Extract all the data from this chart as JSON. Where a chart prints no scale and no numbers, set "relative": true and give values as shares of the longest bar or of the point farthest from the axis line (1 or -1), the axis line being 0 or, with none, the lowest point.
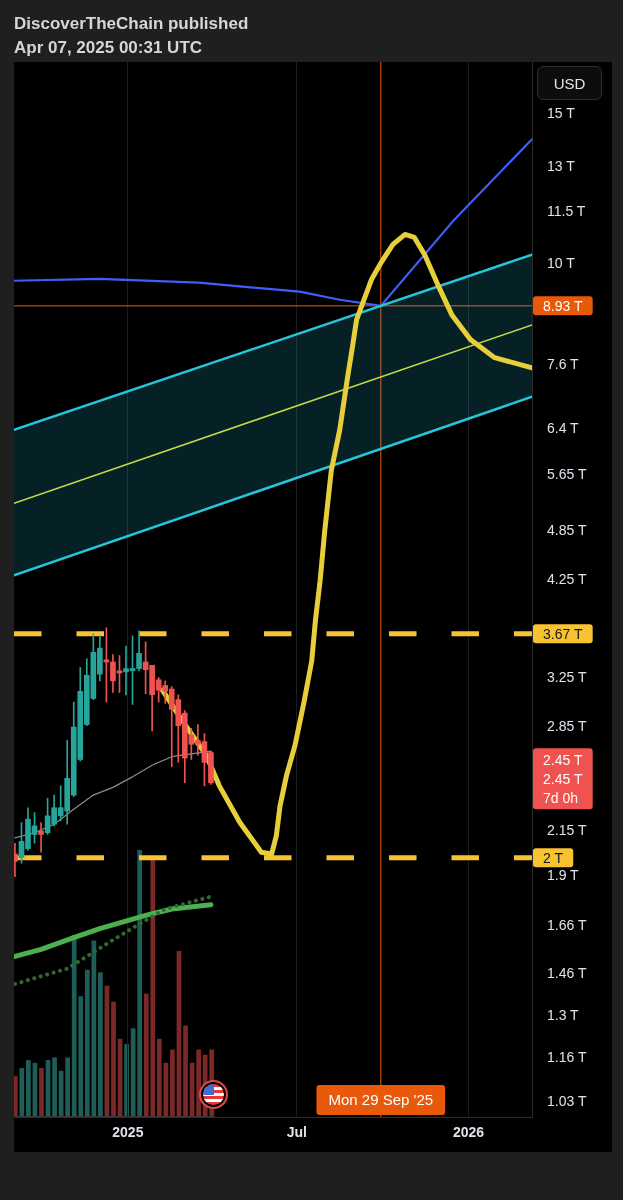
{
  "chart_data": [
    {
      "type": "candlestick",
      "title": "DiscoverTheChain published",
      "subtitle": "Apr 07, 2025 00:31 UTC",
      "ylabel": "USD",
      "x": [
        "2024-09-02",
        "2024-09-09",
        "2024-09-16",
        "2024-09-23",
        "2024-09-30",
        "2024-10-07",
        "2024-10-14",
        "2024-10-21",
        "2024-10-28",
        "2024-11-04",
        "2024-11-11",
        "2024-11-18",
        "2024-11-25",
        "2024-12-02",
        "2024-12-09",
        "2024-12-16",
        "2024-12-23",
        "2024-12-30",
        "2025-01-06",
        "2025-01-13",
        "2025-01-20",
        "2025-01-27",
        "2025-02-03",
        "2025-02-10",
        "2025-02-17",
        "2025-02-24",
        "2025-03-03",
        "2025-03-10",
        "2025-03-17",
        "2025-03-24",
        "2025-03-31"
      ],
      "ohlc": [
        [
          2.02,
          2.08,
          1.9,
          1.98
        ],
        [
          2.0,
          2.2,
          1.97,
          2.09
        ],
        [
          2.05,
          2.29,
          2.04,
          2.22
        ],
        [
          2.13,
          2.26,
          2.08,
          2.18
        ],
        [
          2.15,
          2.2,
          2.03,
          2.13
        ],
        [
          2.14,
          2.35,
          2.13,
          2.24
        ],
        [
          2.19,
          2.37,
          2.18,
          2.29
        ],
        [
          2.24,
          2.43,
          2.21,
          2.29
        ],
        [
          2.27,
          2.75,
          2.19,
          2.48
        ],
        [
          2.37,
          3.05,
          2.36,
          2.85
        ],
        [
          2.61,
          3.35,
          2.6,
          3.14
        ],
        [
          2.87,
          3.43,
          2.86,
          3.28
        ],
        [
          3.08,
          3.67,
          3.07,
          3.49
        ],
        [
          3.29,
          3.65,
          3.23,
          3.53
        ],
        [
          3.42,
          3.73,
          3.05,
          3.4
        ],
        [
          3.4,
          3.47,
          3.13,
          3.23
        ],
        [
          3.32,
          3.46,
          3.13,
          3.3
        ],
        [
          3.31,
          3.55,
          3.11,
          3.34
        ],
        [
          3.32,
          3.65,
          3.03,
          3.34
        ],
        [
          3.34,
          3.7,
          3.32,
          3.48
        ],
        [
          3.4,
          3.59,
          3.12,
          3.33
        ],
        [
          3.37,
          3.37,
          2.82,
          3.11
        ],
        [
          3.24,
          3.26,
          3.05,
          3.15
        ],
        [
          3.19,
          3.23,
          3.04,
          3.14
        ],
        [
          3.16,
          3.18,
          2.56,
          2.99
        ],
        [
          3.07,
          3.11,
          2.59,
          2.86
        ],
        [
          2.96,
          2.98,
          2.45,
          2.62
        ],
        [
          2.79,
          2.84,
          2.61,
          2.72
        ],
        [
          2.75,
          2.87,
          2.64,
          2.72
        ],
        [
          2.74,
          2.8,
          2.43,
          2.59
        ],
        [
          2.66,
          2.67,
          2.44,
          2.45
        ]
      ],
      "colors": [
        "#ef5350",
        "#26a69a",
        "#26a69a",
        "#26a69a",
        "#ef5350",
        "#26a69a",
        "#26a69a",
        "#26a69a",
        "#26a69a",
        "#26a69a",
        "#26a69a",
        "#26a69a",
        "#26a69a",
        "#26a69a",
        "#ef5350",
        "#ef5350",
        "#ef5350",
        "#26a69a",
        "#26a69a",
        "#26a69a",
        "#ef5350",
        "#ef5350",
        "#ef5350",
        "#ef5350",
        "#ef5350",
        "#ef5350",
        "#ef5350",
        "#ef5350",
        "#ef5350",
        "#ef5350",
        "#ef5350"
      ],
      "series": [
        {
          "type": "line",
          "color": "#8c8c8c",
          "x": [
            "2024-09-02",
            "2024-09-23",
            "2024-10-14",
            "2024-11-04",
            "2024-11-25",
            "2024-12-16",
            "2025-01-06",
            "2025-01-27",
            "2025-02-17",
            "2025-03-10",
            "2025-03-31"
          ],
          "values": [
            2.11,
            2.14,
            2.19,
            2.28,
            2.37,
            2.42,
            2.49,
            2.57,
            2.63,
            2.65,
            2.67
          ]
        },
        {
          "type": "line",
          "color": "#4caf50",
          "x": [
            "2024-09-02",
            "2024-09-30",
            "2024-11-04",
            "2024-12-02",
            "2025-01-20",
            "2025-02-17",
            "2025-03-31"
          ],
          "values": [
            1.53,
            1.56,
            1.61,
            1.65,
            1.71,
            1.74,
            1.76
          ]
        },
        {
          "type": "line",
          "color": "#2e6b30",
          "line_style": "dotted",
          "x": [
            "2024-09-02",
            "2024-09-30",
            "2024-10-28",
            "2024-11-18",
            "2024-12-16",
            "2025-01-13",
            "2025-02-10",
            "2025-03-31"
          ],
          "values": [
            1.42,
            1.45,
            1.48,
            1.53,
            1.6,
            1.67,
            1.74,
            1.8
          ]
        },
        {
          "type": "line",
          "color": "#3f5efb",
          "x": [
            "2024-09-01",
            "2024-12-01",
            "2025-03-18",
            "2025-07-04",
            "2025-08-16",
            "2025-09-29",
            "2025-12-17",
            "2026-03-10"
          ],
          "values": [
            9.56,
            9.61,
            9.51,
            9.28,
            9.08,
            8.93,
            11.29,
            14.03
          ]
        },
        {
          "type": "line",
          "color": "#26c6da",
          "x": [
            "2024-09-01",
            "2026-03-10"
          ],
          "values": [
            6.38,
            10.26
          ]
        },
        {
          "type": "line",
          "color": "#26c6da",
          "x": [
            "2024-09-01",
            "2026-03-10"
          ],
          "values": [
            4.3,
            6.98
          ]
        },
        {
          "type": "line",
          "color": "#c9d94a",
          "x": [
            "2024-09-01",
            "2026-03-10"
          ],
          "values": [
            5.23,
            8.48
          ],
          "lower": [
            4.3,
            6.98
          ],
          "upper": [
            6.38,
            10.26
          ]
        },
        {
          "type": "line",
          "color": "#e6cf3a",
          "x": [
            "2025-02-07",
            "2025-03-04",
            "2025-03-26",
            "2025-04-09",
            "2025-05-01",
            "2025-05-24",
            "2025-06-04",
            "2025-06-09",
            "2025-06-13",
            "2025-06-20",
            "2025-06-29",
            "2025-07-09",
            "2025-07-17",
            "2025-07-21",
            "2025-07-26",
            "2025-07-31",
            "2025-08-07",
            "2025-08-16",
            "2025-08-24",
            "2025-08-30",
            "2025-09-03",
            "2025-09-11",
            "2025-09-19",
            "2025-09-30",
            "2025-10-12",
            "2025-10-25",
            "2025-11-04",
            "2025-11-15",
            "2025-11-29",
            "2025-12-14",
            "2026-01-03",
            "2026-01-29",
            "2026-03-10"
          ],
          "values": [
            3.15,
            2.86,
            2.64,
            2.43,
            2.2,
            2.03,
            2.02,
            2.12,
            2.3,
            2.5,
            2.71,
            3.06,
            3.41,
            3.81,
            4.24,
            4.86,
            5.72,
            6.38,
            7.31,
            8.04,
            8.6,
            9.08,
            9.59,
            10.07,
            10.55,
            10.84,
            10.75,
            10.26,
            9.46,
            8.72,
            8.15,
            7.76,
            7.55
          ]
        }
      ],
      "log": "y",
      "ylim": [
        0.99,
        17.3
      ],
      "yticks": [
        {
          "value": 15,
          "label": "15 T"
        },
        {
          "value": 13,
          "label": "13 T"
        },
        {
          "value": 11.5,
          "label": "11.5 T"
        },
        {
          "value": 10,
          "label": "10 T"
        },
        {
          "value": 7.6,
          "label": "7.6 T"
        },
        {
          "value": 6.4,
          "label": "6.4 T"
        },
        {
          "value": 5.65,
          "label": "5.65 T"
        },
        {
          "value": 4.85,
          "label": "4.85 T"
        },
        {
          "value": 4.25,
          "label": "4.25 T"
        },
        {
          "value": 3.25,
          "label": "3.25 T"
        },
        {
          "value": 2.85,
          "label": "2.85 T"
        },
        {
          "value": 2.15,
          "label": "2.15 T"
        },
        {
          "value": 1.9,
          "label": "1.9 T"
        },
        {
          "value": 1.66,
          "label": "1.66 T"
        },
        {
          "value": 1.46,
          "label": "1.46 T"
        },
        {
          "value": 1.3,
          "label": "1.3 T"
        },
        {
          "value": 1.16,
          "label": "1.16 T"
        },
        {
          "value": 1.03,
          "label": "1.03 T"
        }
      ],
      "xlim": [
        "2024-09-01",
        "2026-03-10"
      ],
      "xticks": [
        "2025",
        {
          "value": "2025-07",
          "label": "Jul"
        },
        "2026"
      ],
      "grid": "x",
      "ref_lines": [
        {
          "axis": "y",
          "value": 8.93,
          "label": "8.93 T",
          "color": "#e8590c"
        },
        {
          "axis": "x",
          "value": "2025-09-29",
          "label": "Mon 29 Sep '25",
          "color": "#e8590c"
        },
        {
          "axis": "y",
          "value": 3.67,
          "label": "3.67 T",
          "color": "#f7c331",
          "line_style": "dashed"
        },
        {
          "axis": "y",
          "value": 2,
          "label": "2 T",
          "color": "#f7c331",
          "line_style": "dashed"
        }
      ],
      "annotations": [
        "2.45 T\n2.45 T\n7d 0h"
      ]
    },
    {
      "type": "bar",
      "relative": true,
      "categories": [
        null,
        null,
        null,
        null,
        null,
        null,
        null,
        null,
        null,
        null,
        null,
        null,
        null,
        null,
        null,
        null,
        null,
        null,
        null,
        null,
        null,
        null,
        null,
        null,
        null,
        null,
        null,
        null,
        null,
        null,
        null
      ],
      "values": [
        0.15,
        0.18,
        0.21,
        0.2,
        0.18,
        0.21,
        0.22,
        0.17,
        0.22,
        0.68,
        0.45,
        0.55,
        0.66,
        0.54,
        0.49,
        0.43,
        0.29,
        0.27,
        0.33,
        1,
        0.46,
        0.97,
        0.29,
        0.2,
        0.25,
        0.62,
        0.34,
        0.2,
        0.25,
        0.23,
        0.25
      ],
      "colors": [
        "#7a2828",
        "#1f5e58",
        "#1f5e58",
        "#1f5e58",
        "#7a2828",
        "#1f5e58",
        "#1f5e58",
        "#1f5e58",
        "#1f5e58",
        "#1f5e58",
        "#1f5e58",
        "#1f5e58",
        "#1f5e58",
        "#1f5e58",
        "#7a2828",
        "#7a2828",
        "#7a2828",
        "#1f5e58",
        "#1f5e58",
        "#1f5e58",
        "#7a2828",
        "#7a2828",
        "#7a2828",
        "#7a2828",
        "#7a2828",
        "#7a2828",
        "#7a2828",
        "#7a2828",
        "#7a2828",
        "#7a2828",
        "#7a2828"
      ]
    }
  ]
}
